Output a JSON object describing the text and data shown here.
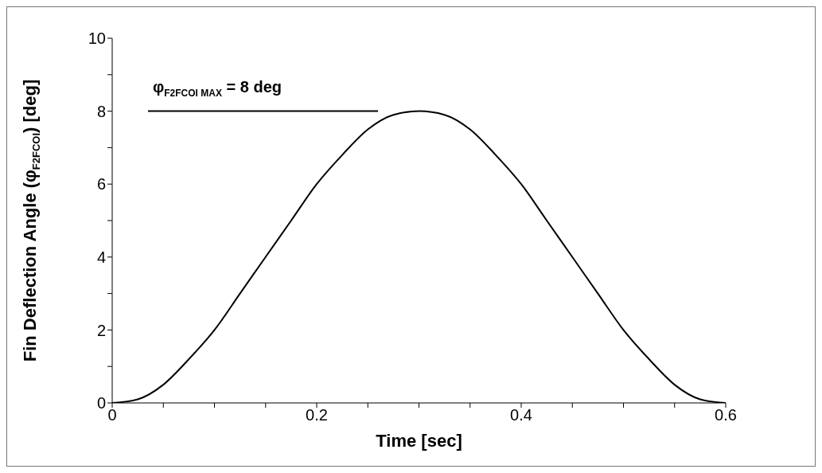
{
  "chart_data": {
    "type": "line",
    "xlabel": "Time [sec]",
    "ylabel": "Fin Deflection Angle (φ$_{F2FCOI}$) [deg]",
    "x": [
      0,
      0.025,
      0.05,
      0.075,
      0.1,
      0.125,
      0.15,
      0.175,
      0.2,
      0.225,
      0.25,
      0.275,
      0.3,
      0.325,
      0.35,
      0.375,
      0.4,
      0.425,
      0.45,
      0.475,
      0.5,
      0.525,
      0.55,
      0.575,
      0.6
    ],
    "series": [
      {
        "color": "#000000",
        "values": [
          0,
          0.1,
          0.5,
          1.2,
          2,
          3,
          4,
          5,
          6,
          6.8,
          7.5,
          7.9,
          8,
          7.9,
          7.5,
          6.8,
          6,
          5,
          4,
          3,
          2,
          1.2,
          0.5,
          0.1,
          0
        ]
      },
      {
        "name": "φ$_{F2FCOI  MAX}$ = 8 deg",
        "color": "#000000",
        "x": [
          0.035,
          0.26
        ],
        "values": [
          8,
          8
        ]
      }
    ],
    "xlim": [
      0,
      0.6
    ],
    "xticks": [
      0,
      {
        "value": 0.05,
        "label": null
      },
      {
        "value": 0.1,
        "label": null
      },
      {
        "value": 0.15,
        "label": null
      },
      0.2,
      {
        "value": 0.25,
        "label": null
      },
      {
        "value": 0.3,
        "label": null
      },
      {
        "value": 0.35,
        "label": null
      },
      0.4,
      {
        "value": 0.45,
        "label": null
      },
      {
        "value": 0.5,
        "label": null
      },
      {
        "value": 0.55,
        "label": null
      },
      0.6
    ],
    "ylim": [
      0,
      10
    ],
    "yticks": [
      0,
      {
        "value": 1,
        "label": null
      },
      2,
      {
        "value": 3,
        "label": null
      },
      4,
      {
        "value": 5,
        "label": null
      },
      6,
      {
        "value": 7,
        "label": null
      },
      8,
      {
        "value": 9,
        "label": null
      },
      10
    ],
    "grid": false,
    "legend": false,
    "marker": "none",
    "line_style": "solid"
  }
}
